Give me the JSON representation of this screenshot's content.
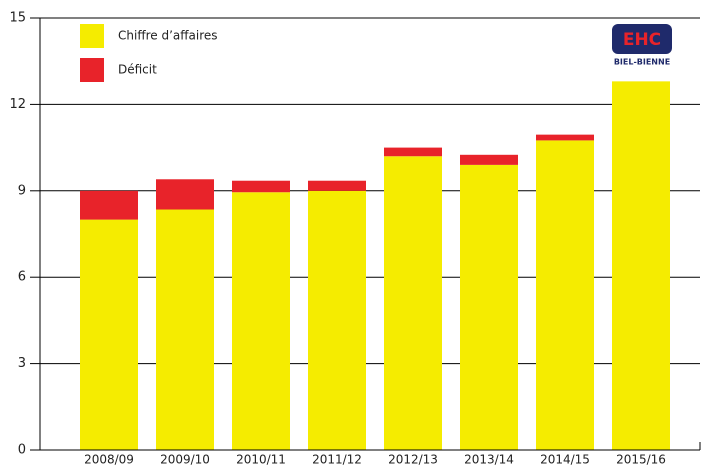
{
  "chart_data": {
    "type": "stacked_bar",
    "categories": [
      "2008/09",
      "2009/10",
      "2010/11",
      "2011/12",
      "2012/13",
      "2013/14",
      "2014/15",
      "2015/16"
    ],
    "series": [
      {
        "name": "Chiffre d’affaires",
        "color": "#f5ec00",
        "values": [
          8.0,
          8.35,
          8.95,
          9.0,
          10.2,
          9.9,
          10.75,
          12.8
        ]
      },
      {
        "name": "Déficit",
        "color": "#e8232a",
        "values": [
          1.0,
          1.05,
          0.4,
          0.35,
          0.3,
          0.35,
          0.2,
          0
        ]
      }
    ],
    "ylim": [
      0,
      15
    ],
    "yticks": [
      0,
      3,
      6,
      9,
      12,
      15
    ],
    "grid": true,
    "logo": {
      "text": "EHC",
      "subtext": "BIEL-BIENNE"
    }
  }
}
